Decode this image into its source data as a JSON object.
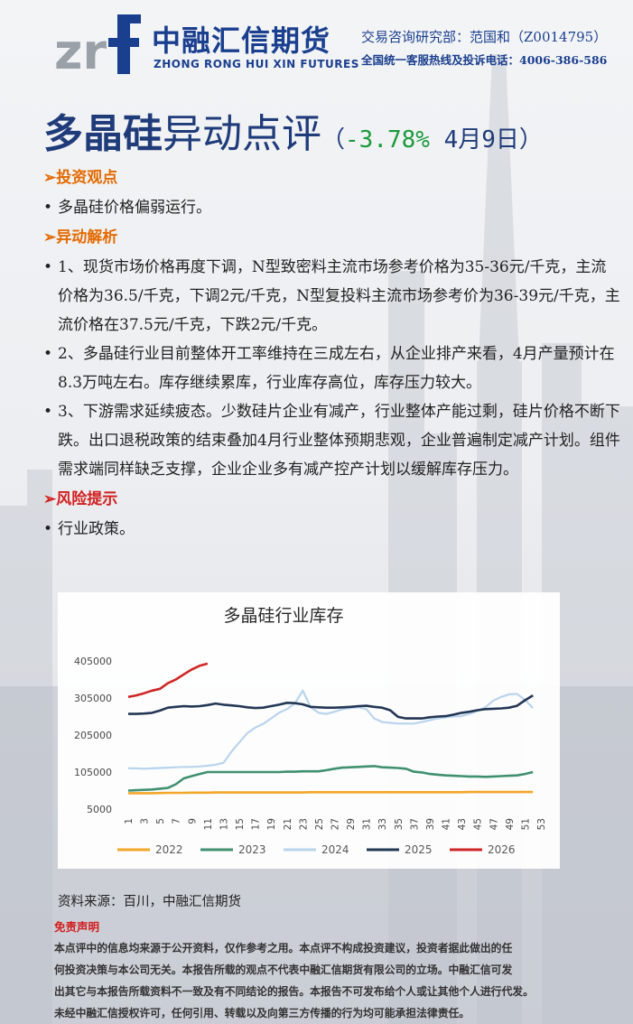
{
  "header": {
    "logo_text_cn": "中融汇信期货",
    "logo_text_en": "ZHONG RONG HUI XIN FUTURES",
    "contact_line": "交易咨询研究部：范国和（Z0014795）",
    "hotline_line": "全国统一客服热线及投诉电话：4006-386-586"
  },
  "title": {
    "main": "多晶硅",
    "sub": "异动点评",
    "paren_open": "（",
    "change": "-3.78%",
    "date": " 4月9日",
    "paren_close": "）"
  },
  "sections": {
    "view_heading": "➢投资观点",
    "view_text": "多晶硅价格偏弱运行。",
    "analysis_heading": "➢异动解析",
    "analysis_items": [
      "1、现货市场价格再度下调，N型致密料主流市场参考价格为35-36元/千克，主流价格为36.5/千克，下调2元/千克，N型复投料主流市场参考价为36-39元/千克，主流价格在37.5元/千克，下跌2元/千克。",
      "2、多晶硅行业目前整体开工率维持在三成左右，从企业排产来看，4月产量预计在8.3万吨左右。库存继续累库，行业库存高位，库存压力较大。",
      "3、下游需求延续疲态。少数硅片企业有减产，行业整体产能过剩，硅片价格不断下跌。出口退税政策的结束叠加4月行业整体预期悲观，企业普遍制定减产计划。组件需求端同样缺乏支撑，企业企业多有减产控产计划以缓解库存压力。"
    ],
    "risk_heading": "➢风险提示",
    "risk_text": "行业政策。"
  },
  "source": "资料来源：百川，中融汇信期货",
  "disclaimer": {
    "title": "免责声明",
    "lines": [
      "本点评中的信息均来源于公开资料，仅作参考之用。本点评不构成投资建议，投资者据此做出的任",
      "何投资决策与本公司无关。本报告所载的观点不代表中融汇信期货有限公司的立场。中融汇信可发",
      "出其它与本报告所载资料不一致及有不同结论的报告。本报告不可发布给个人或让其他个人进行代发。",
      "未经中融汇信授权许可，任何引用、转载以及向第三方传播的行为均可能承担法律责任。"
    ]
  },
  "colors": {
    "s2022": "#f5a623",
    "s2023": "#3a8f6b",
    "s2024": "#b9d5ee",
    "s2025": "#1e3150",
    "s2026": "#d11f1f"
  },
  "chart_data": {
    "type": "line",
    "title": "多晶硅行业库存",
    "ylim": [
      5000,
      405000
    ],
    "yticks": [
      5000,
      105000,
      205000,
      305000,
      405000
    ],
    "xticks": [
      1,
      3,
      5,
      7,
      9,
      11,
      13,
      15,
      17,
      19,
      21,
      23,
      25,
      27,
      29,
      31,
      33,
      35,
      37,
      39,
      41,
      43,
      45,
      47,
      49,
      51,
      53
    ],
    "legend_position": "bottom",
    "grid": false,
    "series": [
      {
        "name": "2022",
        "values": [
          48000,
          48000,
          48000,
          48000,
          48500,
          49000,
          49000,
          49000,
          49500,
          49500,
          49500,
          50000,
          50000,
          50000,
          50000,
          50000,
          50000,
          50000,
          50000,
          50000,
          50000,
          50000,
          50000,
          50500,
          50500,
          50500,
          50500,
          50500,
          50500,
          50500,
          50500,
          50500,
          50500,
          50500,
          50500,
          50500,
          50500,
          50500,
          50500,
          50500,
          50500,
          50500,
          50500,
          51000,
          51000,
          51000,
          51000,
          51000,
          51000,
          51000,
          51000,
          51000
        ]
      },
      {
        "name": "2023",
        "values": [
          55000,
          56000,
          57000,
          58000,
          60000,
          62000,
          72000,
          88000,
          94000,
          100000,
          105000,
          105000,
          105000,
          105000,
          105000,
          105000,
          105000,
          105000,
          105000,
          105000,
          106000,
          106000,
          107000,
          107000,
          107000,
          110000,
          114000,
          117000,
          118000,
          119000,
          120000,
          121000,
          118000,
          117000,
          116000,
          114000,
          106000,
          104000,
          100000,
          98000,
          96000,
          95000,
          94000,
          93000,
          93000,
          92000,
          93000,
          94000,
          95000,
          96000,
          100000,
          105000
        ]
      },
      {
        "name": "2024",
        "values": [
          115000,
          115000,
          114000,
          115000,
          116000,
          117000,
          118000,
          119000,
          119000,
          120000,
          122000,
          125000,
          130000,
          160000,
          185000,
          210000,
          225000,
          235000,
          250000,
          265000,
          275000,
          290000,
          325000,
          280000,
          265000,
          262000,
          268000,
          275000,
          278000,
          280000,
          275000,
          250000,
          240000,
          238000,
          236000,
          236000,
          236000,
          240000,
          245000,
          250000,
          253000,
          255000,
          256000,
          262000,
          270000,
          280000,
          298000,
          308000,
          315000,
          316000,
          300000,
          278000
        ]
      },
      {
        "name": "2025",
        "values": [
          262000,
          262000,
          263000,
          265000,
          271000,
          279000,
          281000,
          283000,
          282000,
          283000,
          286000,
          290000,
          287000,
          285000,
          283000,
          280000,
          278000,
          279000,
          283000,
          287000,
          292000,
          291000,
          288000,
          281000,
          280000,
          279000,
          279000,
          280000,
          281000,
          283000,
          284000,
          281000,
          279000,
          272000,
          254000,
          250000,
          250000,
          250000,
          253000,
          255000,
          256000,
          260000,
          265000,
          268000,
          272000,
          275000,
          276000,
          277000,
          279000,
          284000,
          299000,
          312000
        ]
      },
      {
        "name": "2026",
        "values": [
          308000,
          312000,
          318000,
          325000,
          330000,
          345000,
          355000,
          369000,
          382000,
          392000,
          398000
        ]
      }
    ]
  }
}
